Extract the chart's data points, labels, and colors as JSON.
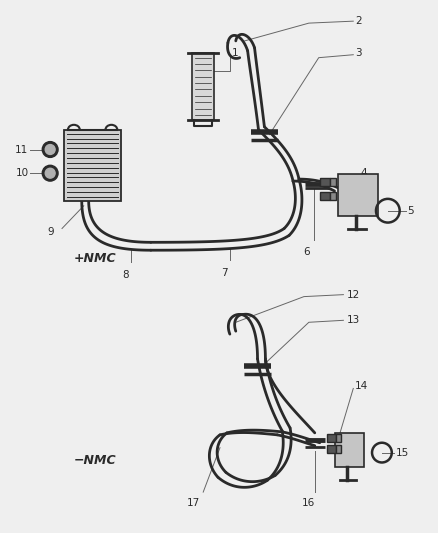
{
  "bg_color": "#efefef",
  "line_color": "#2a2a2a",
  "label_color": "#1a1a1a",
  "fs": 7.5,
  "lw": 2.0,
  "fig_w": 4.38,
  "fig_h": 5.33,
  "dpi": 100
}
